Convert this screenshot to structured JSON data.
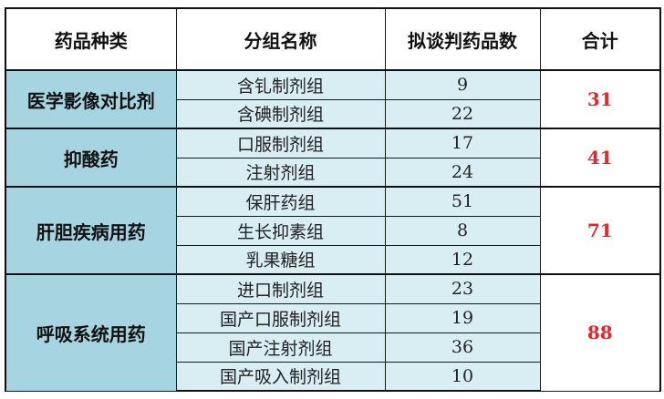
{
  "headers": [
    "药品种类",
    "分组名称",
    "拟谈判药品数",
    "合计"
  ],
  "blocks": [
    {
      "category": "医学影像对比剂",
      "total": "31",
      "rows": [
        {
          "group": "含钆制剂组",
          "count": "9"
        },
        {
          "group": "含碘制剂组",
          "count": "22"
        }
      ]
    },
    {
      "category": "抑酸药",
      "total": "41",
      "rows": [
        {
          "group": "口服制剂组",
          "count": "17"
        },
        {
          "group": "注射剂组",
          "count": "24"
        }
      ]
    },
    {
      "category": "肝胆疾病用药",
      "total": "71",
      "rows": [
        {
          "group": "保肝药组",
          "count": "51"
        },
        {
          "group": "生长抑素组",
          "count": "8"
        },
        {
          "group": "乳果糖组",
          "count": "12"
        }
      ]
    },
    {
      "category": "呼吸系统用药",
      "total": "88",
      "rows": [
        {
          "group": "进口制剂组",
          "count": "23"
        },
        {
          "group": "国产口服制剂组",
          "count": "19"
        },
        {
          "group": "国产注射剂组",
          "count": "36"
        },
        {
          "group": "国产吸入制剂组",
          "count": "10"
        }
      ]
    }
  ],
  "colors": {
    "category_bg": "#a6d4e0",
    "row_bg": "#d9eef3",
    "total_text": "#e3262b",
    "border": "#1a1a1a"
  }
}
